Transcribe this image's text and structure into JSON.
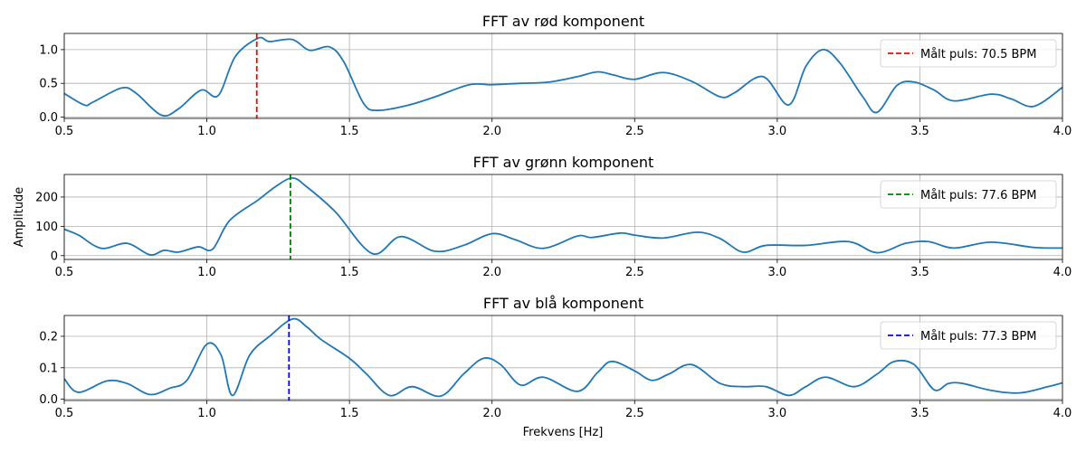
{
  "figure": {
    "ylabel": "Amplitude",
    "xlabel": "Frekvens [Hz]"
  },
  "chart_data": [
    {
      "type": "line",
      "title": "FFT av rød komponent",
      "xlabel": "",
      "ylabel": "",
      "xlim": [
        0.5,
        4.0
      ],
      "ylim": [
        -0.02,
        1.24
      ],
      "xticks": [
        "0.5",
        "1.0",
        "1.5",
        "2.0",
        "2.5",
        "3.0",
        "3.5",
        "4.0"
      ],
      "yticks": [
        "0.0",
        "0.5",
        "1.0"
      ],
      "grid": true,
      "legend_position": "top-right",
      "line_color": "#1f77b4",
      "series": [
        {
          "x": [
            0.5,
            0.57,
            0.6,
            0.7,
            0.75,
            0.84,
            0.9,
            0.98,
            1.04,
            1.1,
            1.18,
            1.22,
            1.3,
            1.36,
            1.43,
            1.48,
            1.55,
            1.6,
            1.7,
            1.8,
            1.92,
            2.0,
            2.1,
            2.2,
            2.3,
            2.37,
            2.43,
            2.5,
            2.6,
            2.7,
            2.8,
            2.85,
            2.95,
            3.04,
            3.1,
            3.16,
            3.22,
            3.3,
            3.35,
            3.42,
            3.48,
            3.55,
            3.62,
            3.75,
            3.82,
            3.9,
            4.0
          ],
          "y": [
            0.35,
            0.18,
            0.22,
            0.43,
            0.36,
            0.03,
            0.12,
            0.4,
            0.32,
            0.9,
            1.17,
            1.12,
            1.15,
            0.99,
            1.04,
            0.82,
            0.2,
            0.1,
            0.17,
            0.3,
            0.48,
            0.48,
            0.5,
            0.52,
            0.6,
            0.67,
            0.62,
            0.56,
            0.66,
            0.53,
            0.3,
            0.36,
            0.6,
            0.18,
            0.75,
            1.0,
            0.8,
            0.3,
            0.07,
            0.47,
            0.52,
            0.4,
            0.24,
            0.34,
            0.27,
            0.16,
            0.44
          ]
        }
      ],
      "marker": {
        "x": 1.175,
        "color": "#ff0000",
        "label": "Målt puls: 70.5 BPM"
      }
    },
    {
      "type": "line",
      "title": "FFT av grønn komponent",
      "xlabel": "",
      "ylabel": "Amplitude",
      "xlim": [
        0.5,
        4.0
      ],
      "ylim": [
        -13,
        277
      ],
      "xticks": [
        "0.5",
        "1.0",
        "1.5",
        "2.0",
        "2.5",
        "3.0",
        "3.5",
        "4.0"
      ],
      "yticks": [
        "0",
        "100",
        "200"
      ],
      "grid": true,
      "legend_position": "top-right",
      "line_color": "#1f77b4",
      "series": [
        {
          "x": [
            0.5,
            0.55,
            0.63,
            0.72,
            0.8,
            0.85,
            0.9,
            0.97,
            1.02,
            1.08,
            1.18,
            1.24,
            1.3,
            1.35,
            1.45,
            1.58,
            1.68,
            1.8,
            1.9,
            2.0,
            2.08,
            2.18,
            2.3,
            2.35,
            2.45,
            2.5,
            2.6,
            2.72,
            2.8,
            2.88,
            2.96,
            3.1,
            3.25,
            3.35,
            3.45,
            3.53,
            3.62,
            3.75,
            3.9,
            4.0
          ],
          "y": [
            90,
            70,
            25,
            42,
            3,
            18,
            12,
            30,
            22,
            120,
            190,
            235,
            265,
            235,
            150,
            7,
            65,
            15,
            35,
            75,
            55,
            25,
            67,
            62,
            77,
            70,
            60,
            80,
            58,
            12,
            35,
            35,
            48,
            10,
            42,
            48,
            26,
            46,
            28,
            26
          ]
        }
      ],
      "marker": {
        "x": 1.293,
        "color": "#008000",
        "label": "Målt puls: 77.6 BPM"
      }
    },
    {
      "type": "line",
      "title": "FFT av blå komponent",
      "xlabel": "Frekvens [Hz]",
      "ylabel": "",
      "xlim": [
        0.5,
        4.0
      ],
      "ylim": [
        -0.004,
        0.266
      ],
      "xticks": [
        "0.5",
        "1.0",
        "1.5",
        "2.0",
        "2.5",
        "3.0",
        "3.5",
        "4.0"
      ],
      "yticks": [
        "0.0",
        "0.1",
        "0.2"
      ],
      "grid": true,
      "legend_position": "top-right",
      "line_color": "#1f77b4",
      "series": [
        {
          "x": [
            0.5,
            0.55,
            0.65,
            0.72,
            0.8,
            0.87,
            0.93,
            1.0,
            1.05,
            1.09,
            1.15,
            1.22,
            1.3,
            1.35,
            1.4,
            1.5,
            1.56,
            1.64,
            1.72,
            1.82,
            1.9,
            1.97,
            2.03,
            2.1,
            2.18,
            2.3,
            2.37,
            2.42,
            2.5,
            2.56,
            2.62,
            2.7,
            2.8,
            2.88,
            2.96,
            3.04,
            3.1,
            3.17,
            3.27,
            3.35,
            3.41,
            3.48,
            3.55,
            3.6,
            3.65,
            3.75,
            3.85,
            3.95,
            4.0
          ],
          "y": [
            0.065,
            0.022,
            0.058,
            0.05,
            0.015,
            0.035,
            0.06,
            0.175,
            0.14,
            0.012,
            0.14,
            0.2,
            0.255,
            0.23,
            0.19,
            0.13,
            0.08,
            0.012,
            0.04,
            0.01,
            0.08,
            0.13,
            0.11,
            0.045,
            0.07,
            0.025,
            0.085,
            0.12,
            0.09,
            0.06,
            0.08,
            0.11,
            0.05,
            0.04,
            0.04,
            0.012,
            0.04,
            0.07,
            0.04,
            0.08,
            0.12,
            0.11,
            0.03,
            0.05,
            0.05,
            0.028,
            0.02,
            0.04,
            0.052
          ]
        }
      ],
      "marker": {
        "x": 1.288,
        "color": "#0000ff",
        "label": "Målt puls: 77.3 BPM"
      }
    }
  ]
}
